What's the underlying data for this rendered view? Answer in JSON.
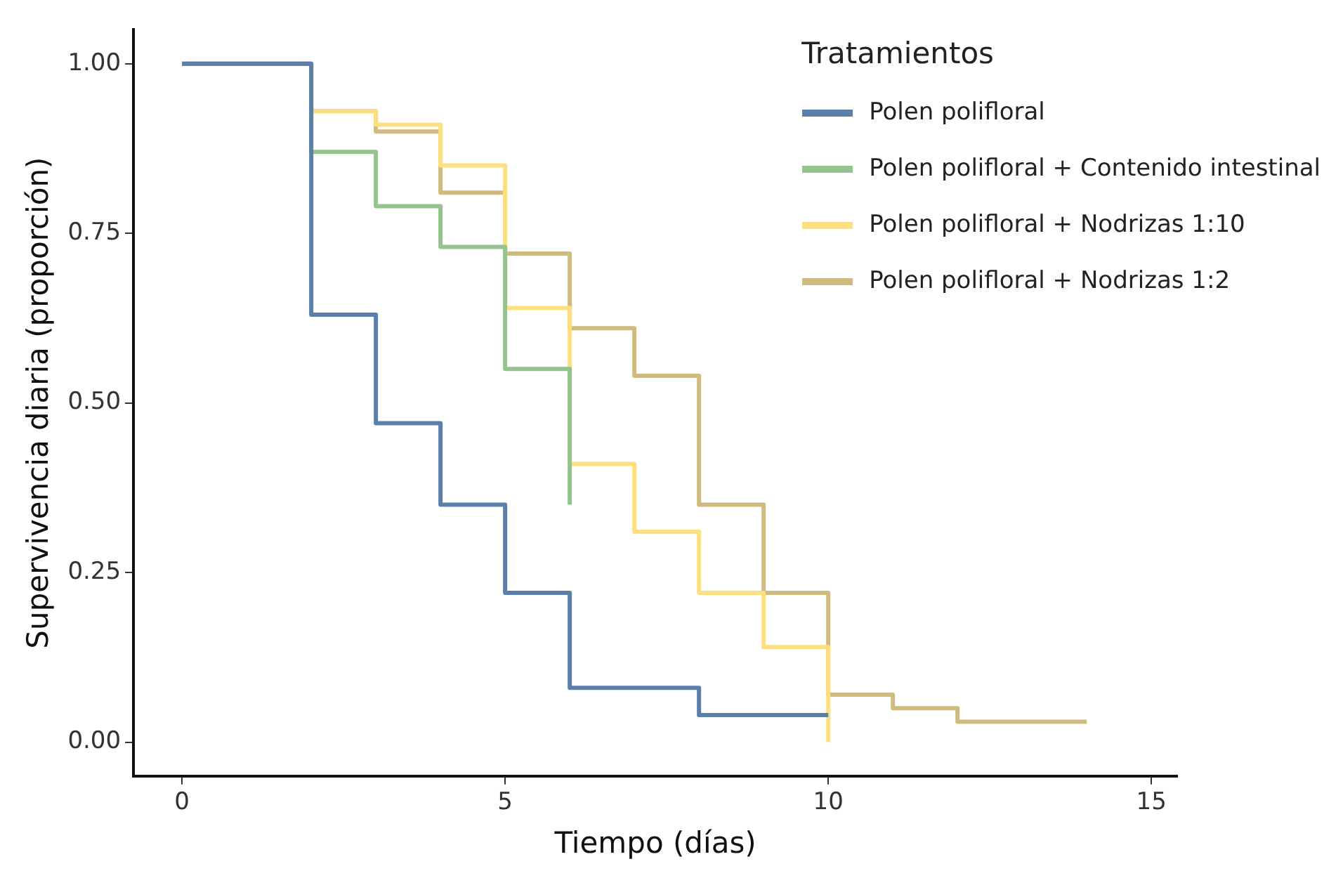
{
  "chart_data": {
    "type": "step",
    "xlabel": "Tiempo (días)",
    "ylabel": "Supervivencia diaria (proporción)",
    "legend_title": "Tratamientos",
    "legend": "top right",
    "grid": false,
    "xlim": [
      -0.75,
      15.4
    ],
    "xticks": [
      0,
      5,
      10,
      15
    ],
    "ylim": [
      -0.05,
      1.05
    ],
    "yticks": [
      {
        "value": 0,
        "label": "0.00"
      },
      {
        "value": 0.25,
        "label": "0.25"
      },
      {
        "value": 0.5,
        "label": "0.50"
      },
      {
        "value": 0.75,
        "label": "0.75"
      },
      {
        "value": 1,
        "label": "1.00"
      }
    ],
    "series": [
      {
        "name": "Polen polifloral",
        "color": "#5a7fa8",
        "x": [
          0,
          2,
          3,
          4,
          5,
          6,
          8,
          10
        ],
        "values": [
          1,
          0.63,
          0.47,
          0.35,
          0.22,
          0.08,
          0.04,
          0.04
        ]
      },
      {
        "name": "Polen polifloral + Contenido intestinal",
        "color": "#95c38f",
        "x": [
          0,
          2,
          3,
          4,
          5,
          6
        ],
        "values": [
          1,
          0.87,
          0.79,
          0.73,
          0.55,
          0.35
        ]
      },
      {
        "name": "Polen polifloral + Nodrizas 1:10",
        "color": "#fedf7f",
        "x": [
          0,
          2,
          3,
          4,
          5,
          6,
          7,
          8,
          9,
          10
        ],
        "values": [
          1,
          0.93,
          0.91,
          0.85,
          0.64,
          0.41,
          0.31,
          0.22,
          0.14,
          0
        ]
      },
      {
        "name": "Polen polifloral + Nodrizas 1:2",
        "color": "#cfbb7e",
        "x": [
          0,
          2,
          3,
          4,
          5,
          6,
          7,
          8,
          9,
          10,
          11,
          12,
          14
        ],
        "values": [
          1,
          0.93,
          0.9,
          0.81,
          0.72,
          0.61,
          0.54,
          0.35,
          0.22,
          0.07,
          0.05,
          0.03,
          0.03
        ]
      }
    ]
  }
}
